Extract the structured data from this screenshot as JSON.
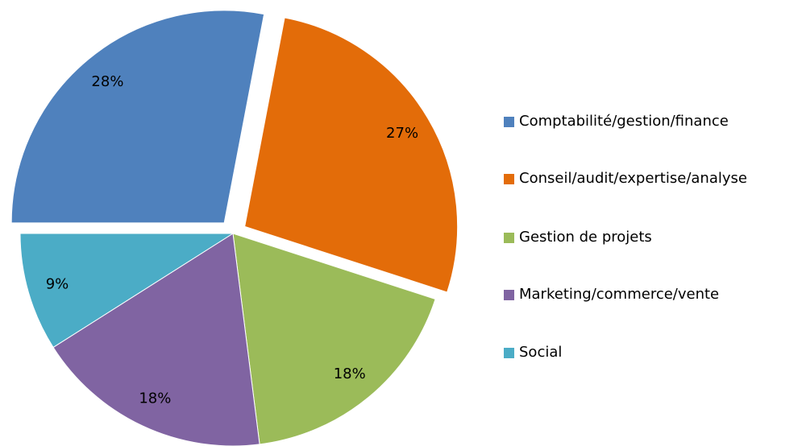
{
  "chart_data": {
    "type": "pie",
    "categories": [
      "Comptabilité/gestion/finance",
      "Conseil/audit/expertise/analyse",
      "Gestion de projets",
      "Marketing/commerce/vente",
      "Social"
    ],
    "values": [
      28,
      27,
      18,
      18,
      9
    ],
    "value_labels": [
      "28%",
      "27%",
      "18%",
      "18%",
      "9%"
    ],
    "colors": [
      "#4f81bd",
      "#e36c09",
      "#9bbb59",
      "#8064a2",
      "#4bacc6"
    ],
    "explode": [
      true,
      true,
      false,
      false,
      false
    ],
    "legend": "right"
  }
}
